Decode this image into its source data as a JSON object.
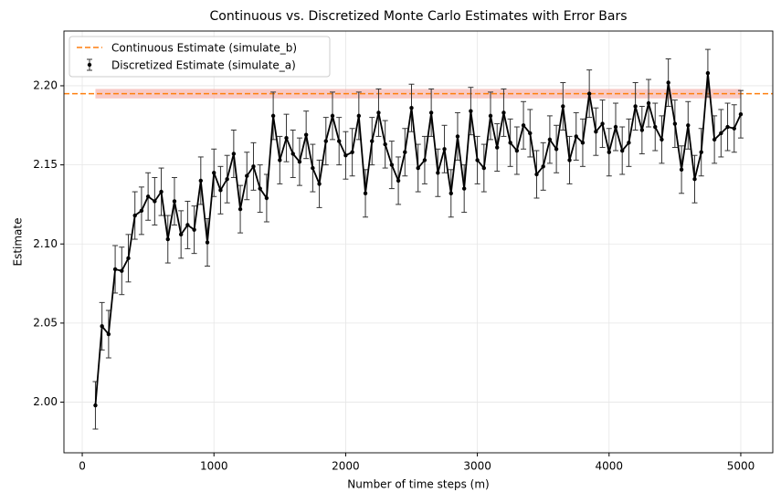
{
  "chart_data": {
    "type": "errorbar-line",
    "title": "Continuous vs. Discretized Monte Carlo Estimates with Error Bars",
    "xlabel": "Number of time steps (m)",
    "ylabel": "Estimate",
    "xlim": [
      -139,
      5243
    ],
    "ylim": [
      1.968,
      2.2346
    ],
    "xticks": [
      0,
      1000,
      2000,
      3000,
      4000,
      5000
    ],
    "yticks": [
      {
        "value": 2.0,
        "label": "2.00"
      },
      {
        "value": 2.05,
        "label": "2.05"
      },
      {
        "value": 2.1,
        "label": "2.10"
      },
      {
        "value": 2.15,
        "label": "2.15"
      },
      {
        "value": 2.2,
        "label": "2.20"
      }
    ],
    "grid": true,
    "legend": "upper left",
    "reference": {
      "name": "Continuous Estimate (simulate_b)",
      "color": "#ff7f0e",
      "value": 2.195,
      "band": [
        2.192,
        2.198
      ],
      "band_color": "#f4a6a0"
    },
    "x": [
      100,
      150,
      200,
      250,
      300,
      350,
      400,
      450,
      500,
      550,
      600,
      650,
      700,
      750,
      800,
      850,
      900,
      950,
      1000,
      1050,
      1100,
      1150,
      1200,
      1250,
      1300,
      1350,
      1400,
      1450,
      1500,
      1550,
      1600,
      1650,
      1700,
      1750,
      1800,
      1850,
      1900,
      1950,
      2000,
      2050,
      2100,
      2150,
      2200,
      2250,
      2300,
      2350,
      2400,
      2450,
      2500,
      2550,
      2600,
      2650,
      2700,
      2750,
      2800,
      2850,
      2900,
      2950,
      3000,
      3050,
      3100,
      3150,
      3200,
      3250,
      3300,
      3350,
      3400,
      3450,
      3500,
      3550,
      3600,
      3650,
      3700,
      3750,
      3800,
      3850,
      3900,
      3950,
      4000,
      4050,
      4100,
      4150,
      4200,
      4250,
      4300,
      4350,
      4400,
      4450,
      4500,
      4550,
      4600,
      4650,
      4700,
      4750,
      4800,
      4850,
      4900,
      4950,
      5000
    ],
    "series": [
      {
        "name": "Discretized Estimate (simulate_a)",
        "color": "#000000",
        "values": [
          1.998,
          2.048,
          2.043,
          2.084,
          2.083,
          2.091,
          2.118,
          2.121,
          2.13,
          2.127,
          2.133,
          2.103,
          2.127,
          2.106,
          2.112,
          2.109,
          2.14,
          2.101,
          2.145,
          2.134,
          2.141,
          2.157,
          2.122,
          2.143,
          2.149,
          2.135,
          2.129,
          2.181,
          2.153,
          2.167,
          2.157,
          2.152,
          2.169,
          2.148,
          2.138,
          2.165,
          2.181,
          2.165,
          2.156,
          2.158,
          2.181,
          2.132,
          2.165,
          2.183,
          2.163,
          2.15,
          2.14,
          2.158,
          2.186,
          2.148,
          2.153,
          2.183,
          2.145,
          2.16,
          2.132,
          2.168,
          2.135,
          2.184,
          2.153,
          2.148,
          2.181,
          2.161,
          2.183,
          2.164,
          2.159,
          2.175,
          2.17,
          2.144,
          2.149,
          2.166,
          2.16,
          2.187,
          2.153,
          2.168,
          2.164,
          2.195,
          2.171,
          2.176,
          2.158,
          2.174,
          2.159,
          2.164,
          2.187,
          2.172,
          2.189,
          2.174,
          2.166,
          2.202,
          2.176,
          2.147,
          2.175,
          2.141,
          2.158,
          2.208,
          2.166,
          2.17,
          2.174,
          2.173,
          2.182
        ],
        "errors": [
          0.015,
          0.015,
          0.015,
          0.015,
          0.015,
          0.015,
          0.015,
          0.015,
          0.015,
          0.015,
          0.015,
          0.015,
          0.015,
          0.015,
          0.015,
          0.015,
          0.015,
          0.015,
          0.015,
          0.015,
          0.015,
          0.015,
          0.015,
          0.015,
          0.015,
          0.015,
          0.015,
          0.015,
          0.015,
          0.015,
          0.015,
          0.015,
          0.015,
          0.015,
          0.015,
          0.015,
          0.015,
          0.015,
          0.015,
          0.015,
          0.015,
          0.015,
          0.015,
          0.015,
          0.015,
          0.015,
          0.015,
          0.015,
          0.015,
          0.015,
          0.015,
          0.015,
          0.015,
          0.015,
          0.015,
          0.015,
          0.015,
          0.015,
          0.015,
          0.015,
          0.015,
          0.015,
          0.015,
          0.015,
          0.015,
          0.015,
          0.015,
          0.015,
          0.015,
          0.015,
          0.015,
          0.015,
          0.015,
          0.015,
          0.015,
          0.015,
          0.015,
          0.015,
          0.015,
          0.015,
          0.015,
          0.015,
          0.015,
          0.015,
          0.015,
          0.015,
          0.015,
          0.015,
          0.015,
          0.015,
          0.015,
          0.015,
          0.015,
          0.015,
          0.015,
          0.015,
          0.015,
          0.015,
          0.015
        ]
      }
    ]
  }
}
